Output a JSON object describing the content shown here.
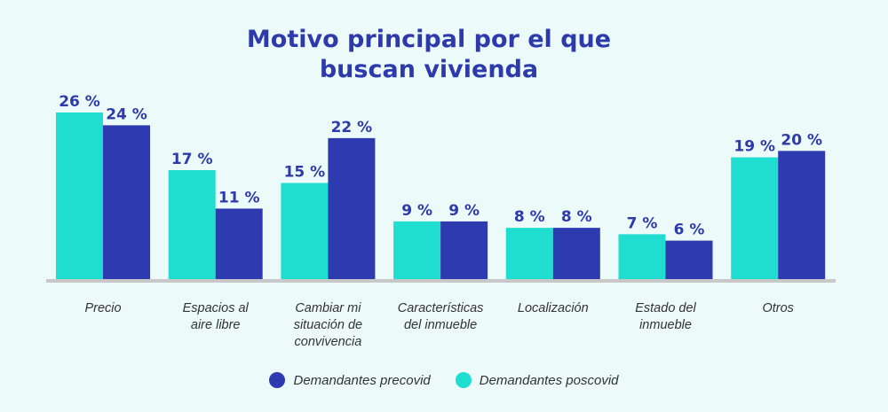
{
  "title_line1": "Motivo principal por el que",
  "title_line2": "buscan vivienda",
  "colors": {
    "precovid": "#2d3ab0",
    "poscovid": "#1fded0",
    "axis": "#c8c8c8",
    "label": "#2d3aab"
  },
  "legend": {
    "precovid": "Demandantes precovid",
    "poscovid": "Demandantes poscovid"
  },
  "chart_data": {
    "type": "bar",
    "title": "Motivo principal por el que buscan vivienda",
    "categories": [
      [
        "Precio"
      ],
      [
        "Espacios al",
        "aire libre"
      ],
      [
        "Cambiar mi",
        "situación de",
        "convivencia"
      ],
      [
        "Características",
        "del inmueble"
      ],
      [
        "Localización"
      ],
      [
        "Estado del",
        "inmueble"
      ],
      [
        "Otros"
      ]
    ],
    "series": [
      {
        "name": "Demandantes poscovid",
        "values": [
          26,
          17,
          15,
          9,
          8,
          7,
          19
        ]
      },
      {
        "name": "Demandantes precovid",
        "values": [
          24,
          11,
          22,
          9,
          8,
          6,
          20
        ]
      }
    ],
    "value_suffix": " %",
    "ylim": [
      0,
      30
    ],
    "grid": false,
    "legend_position": "bottom"
  }
}
